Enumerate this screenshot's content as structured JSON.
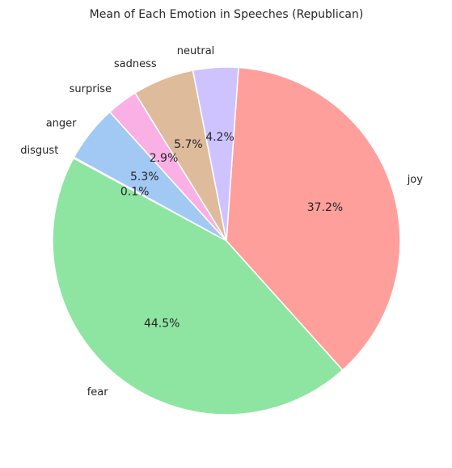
{
  "chart_data": {
    "type": "pie",
    "title": "Mean of Each Emotion in Speeches (Republican)",
    "categories": [
      "joy",
      "fear",
      "disgust",
      "anger",
      "surprise",
      "sadness",
      "neutral"
    ],
    "values": [
      37.2,
      44.5,
      0.1,
      5.3,
      2.9,
      5.7,
      4.2
    ],
    "value_labels": [
      "37.2%",
      "44.5%",
      "0.1%",
      "5.3%",
      "2.9%",
      "5.7%",
      "4.2%"
    ],
    "colors": [
      "#ff9f9b",
      "#8de5a1",
      "#d0bbff",
      "#a1c9f4",
      "#fab0e4",
      "#debb9b",
      "#cfc3ff"
    ],
    "start_angle_deg": 86,
    "direction": "clockwise",
    "legend": "none"
  }
}
